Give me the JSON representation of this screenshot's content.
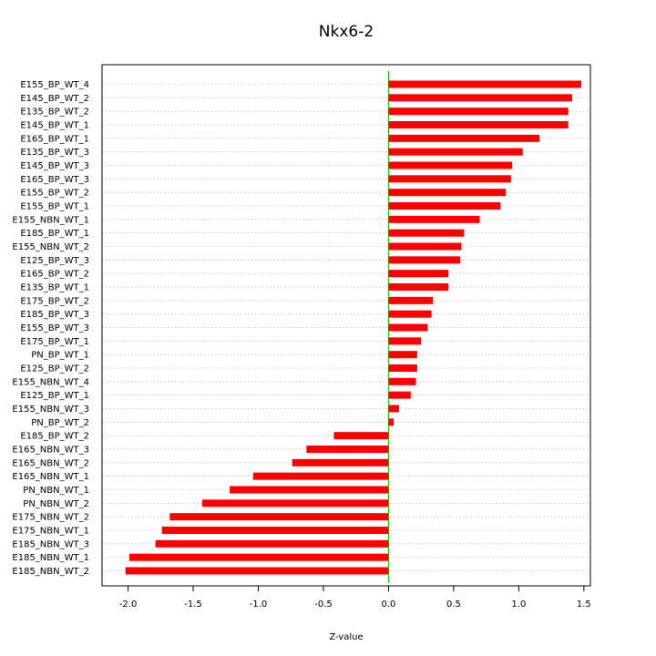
{
  "chart_data": {
    "type": "bar",
    "orientation": "horizontal",
    "title": "Nkx6-2",
    "xlabel": "Z-value",
    "ylabel": "",
    "xlim": [
      -2.2,
      1.55
    ],
    "x_ticks": [
      "-2.0",
      "-1.5",
      "-1.0",
      "-0.5",
      "0.0",
      "0.5",
      "1.0",
      "1.5"
    ],
    "x_tick_values": [
      -2.0,
      -1.5,
      -1.0,
      -0.5,
      0.0,
      0.5,
      1.0,
      1.5
    ],
    "grid": true,
    "bar_color": "#ff0000",
    "zero_line_color": "#00cc00",
    "categories": [
      "E155_BP_WT_4",
      "E145_BP_WT_2",
      "E135_BP_WT_2",
      "E145_BP_WT_1",
      "E165_BP_WT_1",
      "E135_BP_WT_3",
      "E145_BP_WT_3",
      "E165_BP_WT_3",
      "E155_BP_WT_2",
      "E155_BP_WT_1",
      "E155_NBN_WT_1",
      "E185_BP_WT_1",
      "E155_NBN_WT_2",
      "E125_BP_WT_3",
      "E165_BP_WT_2",
      "E135_BP_WT_1",
      "E175_BP_WT_2",
      "E185_BP_WT_3",
      "E155_BP_WT_3",
      "E175_BP_WT_1",
      "PN_BP_WT_1",
      "E125_BP_WT_2",
      "E155_NBN_WT_4",
      "E125_BP_WT_1",
      "E155_NBN_WT_3",
      "PN_BP_WT_2",
      "E185_BP_WT_2",
      "E165_NBN_WT_3",
      "E165_NBN_WT_2",
      "E165_NBN_WT_1",
      "PN_NBN_WT_1",
      "PN_NBN_WT_2",
      "E175_NBN_WT_2",
      "E175_NBN_WT_1",
      "E185_NBN_WT_3",
      "E185_NBN_WT_1",
      "E185_NBN_WT_2"
    ],
    "values": [
      1.48,
      1.41,
      1.38,
      1.38,
      1.16,
      1.03,
      0.95,
      0.94,
      0.9,
      0.86,
      0.7,
      0.58,
      0.56,
      0.55,
      0.46,
      0.46,
      0.34,
      0.33,
      0.3,
      0.25,
      0.22,
      0.22,
      0.21,
      0.17,
      0.08,
      0.04,
      -0.42,
      -0.63,
      -0.74,
      -1.04,
      -1.22,
      -1.43,
      -1.68,
      -1.74,
      -1.79,
      -1.99,
      -2.02
    ]
  }
}
